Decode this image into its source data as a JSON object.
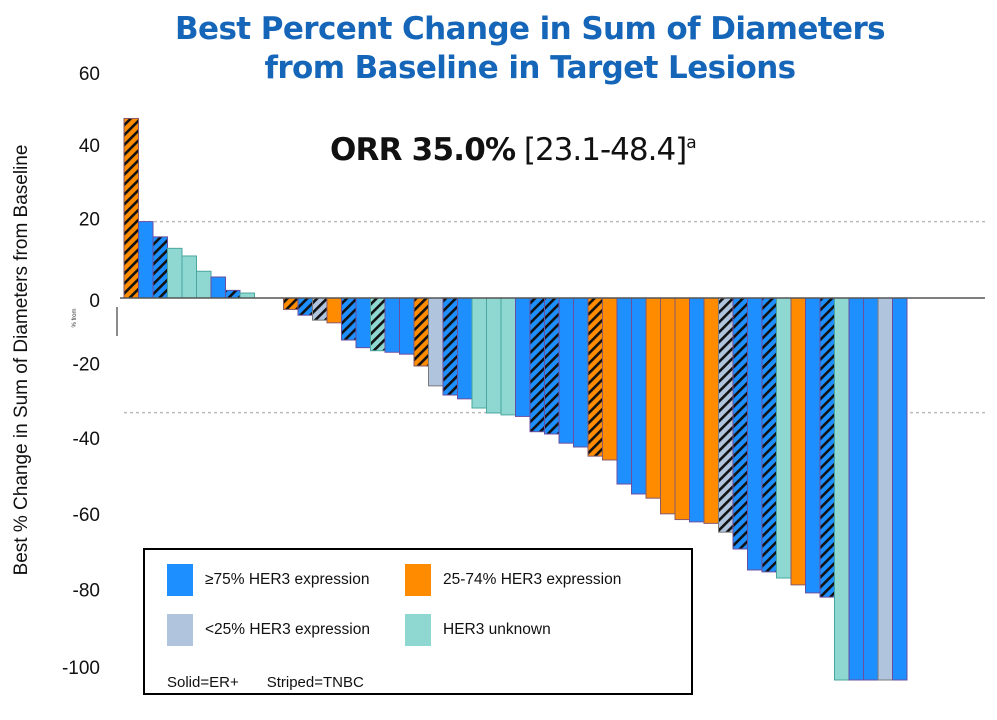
{
  "chart_data": {
    "type": "bar",
    "title": "Best Percent Change in Sum of Diameters from Baseline in Target Lesions",
    "title_lines": [
      "Best Percent Change in Sum of Diameters",
      "from Baseline in Target Lesions"
    ],
    "annotation": {
      "main": "ORR 35.0%",
      "ci": "[23.1-48.4]",
      "superscript": "a"
    },
    "xlabel": "",
    "ylabel": "Best % Change in Sum of Diameters from Baseline",
    "ylim": [
      -100,
      60
    ],
    "yticks": [
      60,
      40,
      20,
      0,
      -20,
      -40,
      -60,
      -80,
      -100
    ],
    "ytick_labels": [
      "60",
      "40",
      "20",
      "0",
      "-20",
      "-40",
      "-60",
      "-80",
      "-100"
    ],
    "reference_lines": [
      20,
      -30
    ],
    "grid": false,
    "legend_position": "bottom-left",
    "artifact_text": "% from",
    "categories_key": {
      "high": {
        "label": "≥75% HER3 expression",
        "color": "#1e8fff"
      },
      "mid": {
        "label": "25-74% HER3 expression",
        "color": "#ff8c00"
      },
      "low": {
        "label": "<25% HER3 expression",
        "color": "#b0c4de"
      },
      "unknown": {
        "label": "HER3 unknown",
        "color": "#8fd8d2"
      }
    },
    "pattern_key": {
      "solid": "Solid=ER+",
      "striped": "Striped=TNBC"
    },
    "bars": [
      {
        "value": 47,
        "her3": "mid",
        "subtype": "TNBC"
      },
      {
        "value": 20,
        "her3": "high",
        "subtype": "ER+"
      },
      {
        "value": 16,
        "her3": "high",
        "subtype": "TNBC"
      },
      {
        "value": 13,
        "her3": "unknown",
        "subtype": "ER+"
      },
      {
        "value": 11,
        "her3": "unknown",
        "subtype": "ER+"
      },
      {
        "value": 7,
        "her3": "unknown",
        "subtype": "ER+"
      },
      {
        "value": 5.5,
        "her3": "high",
        "subtype": "ER+"
      },
      {
        "value": 2,
        "her3": "high",
        "subtype": "TNBC"
      },
      {
        "value": 1.3,
        "her3": "unknown",
        "subtype": "ER+"
      },
      {
        "value": 0,
        "her3": "unknown",
        "subtype": "ER+"
      },
      {
        "value": 0,
        "her3": "unknown",
        "subtype": "ER+"
      },
      {
        "value": -3,
        "her3": "mid",
        "subtype": "TNBC"
      },
      {
        "value": -4.5,
        "her3": "high",
        "subtype": "TNBC"
      },
      {
        "value": -5.8,
        "her3": "low",
        "subtype": "TNBC"
      },
      {
        "value": -6.5,
        "her3": "mid",
        "subtype": "ER+"
      },
      {
        "value": -11,
        "her3": "high",
        "subtype": "TNBC"
      },
      {
        "value": -13,
        "her3": "high",
        "subtype": "ER+"
      },
      {
        "value": -13.8,
        "her3": "unknown",
        "subtype": "TNBC"
      },
      {
        "value": -14.2,
        "her3": "high",
        "subtype": "ER+"
      },
      {
        "value": -14.7,
        "her3": "high",
        "subtype": "ER+"
      },
      {
        "value": -17.8,
        "her3": "mid",
        "subtype": "TNBC"
      },
      {
        "value": -23,
        "her3": "low",
        "subtype": "ER+"
      },
      {
        "value": -25.4,
        "her3": "high",
        "subtype": "TNBC"
      },
      {
        "value": -26.4,
        "her3": "high",
        "subtype": "ER+"
      },
      {
        "value": -28.8,
        "her3": "unknown",
        "subtype": "ER+"
      },
      {
        "value": -30.1,
        "her3": "unknown",
        "subtype": "ER+"
      },
      {
        "value": -30.6,
        "her3": "unknown",
        "subtype": "ER+"
      },
      {
        "value": -31,
        "her3": "high",
        "subtype": "ER+"
      },
      {
        "value": -35,
        "her3": "high",
        "subtype": "TNBC"
      },
      {
        "value": -35.6,
        "her3": "high",
        "subtype": "TNBC"
      },
      {
        "value": -38,
        "her3": "high",
        "subtype": "ER+"
      },
      {
        "value": -39,
        "her3": "high",
        "subtype": "ER+"
      },
      {
        "value": -41.4,
        "her3": "mid",
        "subtype": "TNBC"
      },
      {
        "value": -42.4,
        "her3": "mid",
        "subtype": "ER+"
      },
      {
        "value": -48.7,
        "her3": "high",
        "subtype": "ER+"
      },
      {
        "value": -51.3,
        "her3": "high",
        "subtype": "ER+"
      },
      {
        "value": -52.4,
        "her3": "mid",
        "subtype": "ER+"
      },
      {
        "value": -56.5,
        "her3": "mid",
        "subtype": "ER+"
      },
      {
        "value": -58,
        "her3": "mid",
        "subtype": "ER+"
      },
      {
        "value": -58.6,
        "her3": "high",
        "subtype": "ER+"
      },
      {
        "value": -59,
        "her3": "mid",
        "subtype": "ER+"
      },
      {
        "value": -61.3,
        "her3": "low",
        "subtype": "TNBC"
      },
      {
        "value": -65.7,
        "her3": "high",
        "subtype": "TNBC"
      },
      {
        "value": -71.2,
        "her3": "high",
        "subtype": "ER+"
      },
      {
        "value": -71.7,
        "her3": "high",
        "subtype": "TNBC"
      },
      {
        "value": -73.3,
        "her3": "unknown",
        "subtype": "ER+"
      },
      {
        "value": -75.1,
        "her3": "mid",
        "subtype": "ER+"
      },
      {
        "value": -77.2,
        "her3": "high",
        "subtype": "ER+"
      },
      {
        "value": -78.3,
        "her3": "high",
        "subtype": "TNBC"
      },
      {
        "value": -100,
        "her3": "unknown",
        "subtype": "ER+"
      },
      {
        "value": -100,
        "her3": "high",
        "subtype": "ER+"
      },
      {
        "value": -100,
        "her3": "high",
        "subtype": "ER+"
      },
      {
        "value": -100,
        "her3": "low",
        "subtype": "ER+"
      },
      {
        "value": -100,
        "her3": "high",
        "subtype": "ER+"
      }
    ]
  },
  "legend": {
    "items": [
      {
        "key": "high",
        "label": "≥75% HER3 expression",
        "color": "#1e8fff"
      },
      {
        "key": "mid",
        "label": "25-74% HER3 expression",
        "color": "#ff8c00"
      },
      {
        "key": "low",
        "label": "<25% HER3 expression",
        "color": "#b0c4de"
      },
      {
        "key": "unknown",
        "label": "HER3 unknown",
        "color": "#8fd8d2"
      }
    ],
    "note_solid": "Solid=ER+",
    "note_striped": "Striped=TNBC"
  },
  "colors": {
    "title": "#1565b8",
    "border_high": "#6a4fa0",
    "border_mid": "#8a5a6a",
    "border_low": "#7a7a7a",
    "border_unknown": "#4aa69f",
    "reference_line": "#bbbbbb"
  }
}
